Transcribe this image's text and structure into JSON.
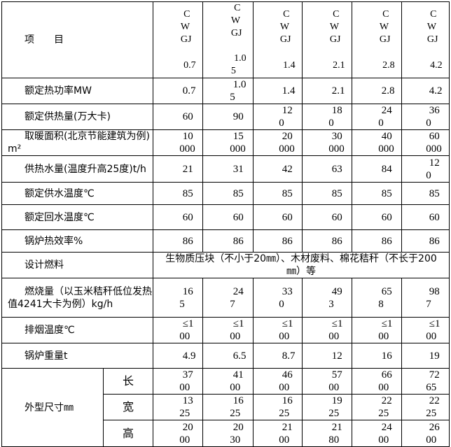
{
  "header": {
    "item_label": "项　　目",
    "models": [
      {
        "name": "CWGJ",
        "size": "0.7"
      },
      {
        "name": "CWGJ",
        "size": "1.05"
      },
      {
        "name": "CWGJ",
        "size": "1.4"
      },
      {
        "name": "CWGJ",
        "size": "2.1"
      },
      {
        "name": "CWGJ",
        "size": "2.8"
      },
      {
        "name": "CWGJ",
        "size": "4.2"
      }
    ]
  },
  "rows": [
    {
      "label": "额定热功率MW",
      "values": [
        "0.7",
        "1.05",
        "1.4",
        "2.1",
        "2.8",
        "4.2"
      ]
    },
    {
      "label": "额定供热量(万大卡)",
      "values": [
        "60",
        "90",
        "120",
        "180",
        "240",
        "360"
      ]
    },
    {
      "label": "取暖面积(北京节能建筑为例)m²",
      "values": [
        "10000",
        "15000",
        "20000",
        "30000",
        "40000",
        "60000"
      ]
    },
    {
      "label": "供热水量(温度升高25度)t/h",
      "values": [
        "21",
        "31",
        "42",
        "63",
        "84",
        "120"
      ]
    },
    {
      "label": "额定供水温度℃",
      "values": [
        "85",
        "85",
        "85",
        "85",
        "85",
        "85"
      ]
    },
    {
      "label": "额定回水温度℃",
      "values": [
        "60",
        "60",
        "60",
        "60",
        "60",
        "60"
      ]
    },
    {
      "label": "锅炉热效率%",
      "values": [
        "86",
        "86",
        "86",
        "86",
        "86",
        "86"
      ]
    }
  ],
  "fuel": {
    "label": "设计燃料",
    "value": "生物质压块（不小于20㎜）、木材废料、棉花秸秆（不长于200㎜）等"
  },
  "rows2": [
    {
      "label": "燃烧量（以玉米秸秆低位发热值4241大卡为例）kg/h",
      "values": [
        "165",
        "247",
        "330",
        "493",
        "658",
        "987"
      ]
    },
    {
      "label": "排烟温度℃",
      "values": [
        "≤100",
        "≤100",
        "≤100",
        "≤100",
        "≤100",
        "≤100"
      ]
    },
    {
      "label": "锅炉重量t",
      "values": [
        "4.9",
        "6.5",
        "8.7",
        "12",
        "16",
        "19"
      ]
    }
  ],
  "dimensions": {
    "label": "外型尺寸㎜",
    "rows": [
      {
        "label": "长",
        "values": [
          "3700",
          "4100",
          "4600",
          "5700",
          "6600",
          "7265"
        ]
      },
      {
        "label": "宽",
        "values": [
          "1325",
          "1625",
          "1625",
          "1925",
          "2225",
          "2225"
        ]
      },
      {
        "label": "高",
        "values": [
          "2000",
          "2030",
          "2100",
          "2180",
          "2400",
          "2600"
        ]
      }
    ]
  }
}
